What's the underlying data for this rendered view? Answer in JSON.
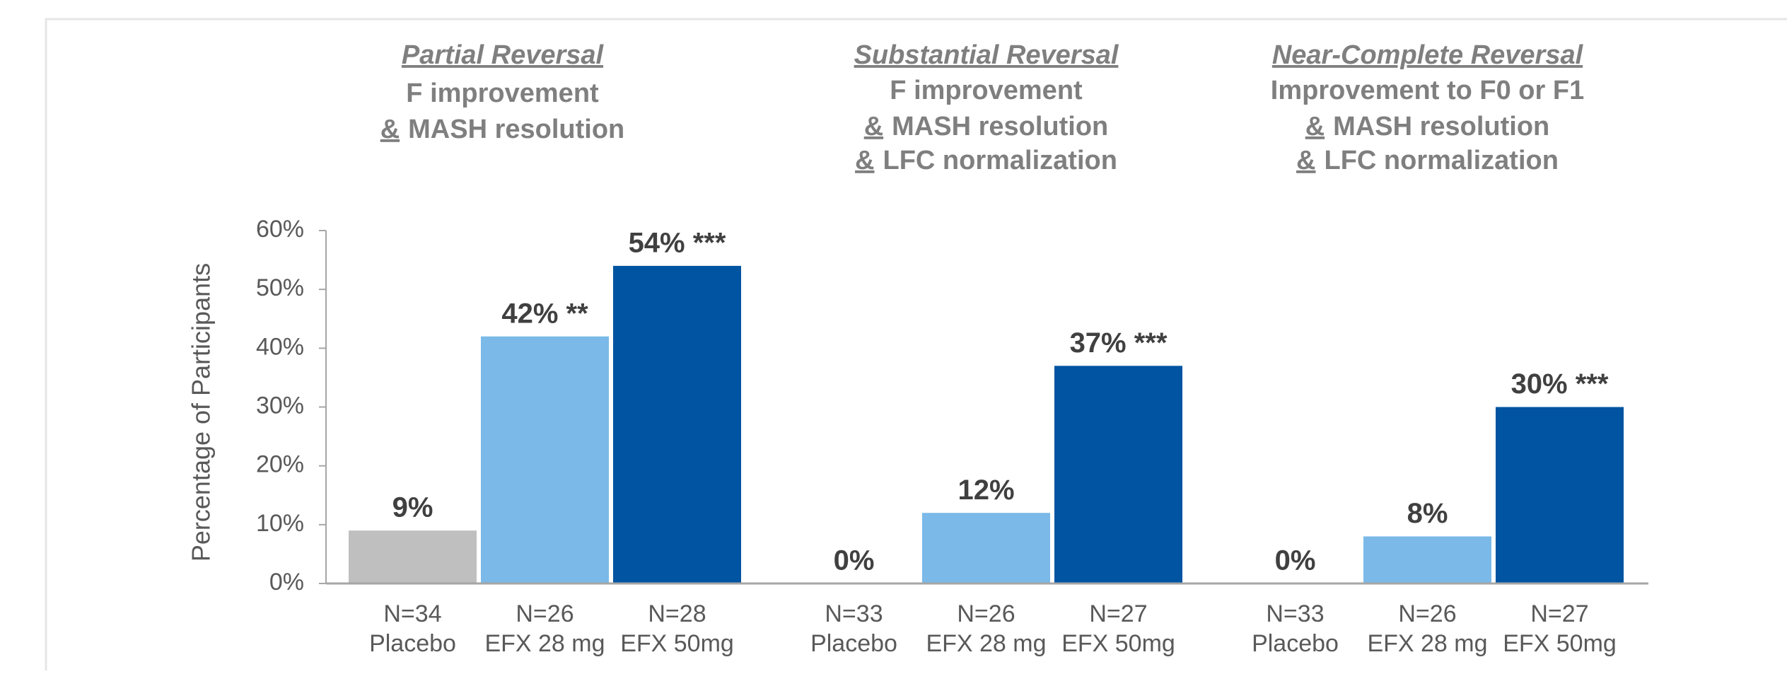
{
  "chart_data": {
    "type": "bar",
    "y_label": "Percentage of Participants",
    "ylim": [
      0,
      60
    ],
    "yticks": [
      {
        "value": 0,
        "label": "0%"
      },
      {
        "value": 10,
        "label": "10%"
      },
      {
        "value": 20,
        "label": "20%"
      },
      {
        "value": 30,
        "label": "30%"
      },
      {
        "value": 40,
        "label": "40%"
      },
      {
        "value": 50,
        "label": "50%"
      },
      {
        "value": 60,
        "label": "60%"
      }
    ],
    "groups": [
      {
        "title": "Partial Reversal",
        "lines": [
          {
            "text": "F improvement"
          },
          {
            "underlined": "&",
            "text": "MASH resolution"
          }
        ]
      },
      {
        "title": "Substantial Reversal",
        "lines": [
          {
            "text": "F improvement"
          },
          {
            "underlined": "&",
            "text": "MASH resolution"
          },
          {
            "underlined": "&",
            "text": "LFC normalization"
          }
        ]
      },
      {
        "title": "Near-Complete Reversal",
        "lines": [
          {
            "text": "Improvement to F0 or F1"
          },
          {
            "underlined": "&",
            "text": "MASH resolution"
          },
          {
            "underlined": "&",
            "text": "LFC normalization"
          }
        ]
      }
    ],
    "series": [
      {
        "name": "Placebo",
        "color": "#bfbfbf",
        "values": [
          9,
          0,
          0
        ],
        "value_labels": [
          "9%",
          "0%",
          "0%"
        ],
        "n_labels": [
          "N=34",
          "N=33",
          "N=33"
        ]
      },
      {
        "name": "EFX 28 mg",
        "color": "#7ab9e8",
        "values": [
          42,
          12,
          8
        ],
        "value_labels": [
          "42% **",
          "12%",
          "8%"
        ],
        "n_labels": [
          "N=26",
          "N=26",
          "N=26"
        ]
      },
      {
        "name": "EFX 50mg",
        "color": "#0054a1",
        "values": [
          54,
          37,
          30
        ],
        "value_labels": [
          "54% ***",
          "37% ***",
          "30% ***"
        ],
        "n_labels": [
          "N=28",
          "N=27",
          "N=27"
        ]
      }
    ]
  }
}
